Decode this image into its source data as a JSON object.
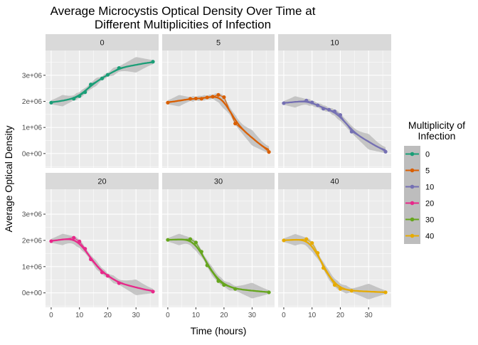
{
  "chart_data": {
    "type": "line",
    "title": "Average Microcystis Optical Density Over Time at\nDifferent Multiplicities of Infection",
    "xlabel": "Time (hours)",
    "ylabel": "Average Optical Density",
    "xlim": [
      -2,
      38
    ],
    "ylim": [
      -550000,
      3950000
    ],
    "x_ticks": [
      0,
      10,
      20,
      30
    ],
    "x_tick_labels": [
      "0",
      "10",
      "20",
      "30"
    ],
    "y_ticks": [
      0,
      1000000,
      2000000,
      3000000
    ],
    "y_tick_labels": [
      "0e+00",
      "1e+06",
      "2e+06",
      "3e+06"
    ],
    "grid": true,
    "smooth_band": true,
    "facet_layout": "2 rows x 3 columns",
    "legend": {
      "title": "Multiplicity of\nInfection",
      "position": "right",
      "entries": [
        "0",
        "5",
        "10",
        "20",
        "30",
        "40"
      ]
    },
    "colors": {
      "panel_bg": "#EBEBEB",
      "strip_bg": "#D9D9D9",
      "grid": "#FFFFFF",
      "band": "#BDBDBD",
      "series": [
        "#1B9E77",
        "#D95F02",
        "#7570B3",
        "#E7298A",
        "#66A61E",
        "#E6AB02"
      ]
    },
    "series": [
      {
        "name": "0",
        "x": [
          0,
          8,
          10,
          12,
          14,
          18,
          20,
          24,
          36
        ],
        "y": [
          1950000,
          2100000,
          2200000,
          2350000,
          2650000,
          2880000,
          3020000,
          3280000,
          3520000
        ]
      },
      {
        "name": "5",
        "x": [
          0,
          8,
          10,
          12,
          14,
          16,
          18,
          20,
          24,
          36
        ],
        "y": [
          1950000,
          2100000,
          2110000,
          2100000,
          2150000,
          2180000,
          2250000,
          2160000,
          1150000,
          60000
        ]
      },
      {
        "name": "10",
        "x": [
          0,
          8,
          10,
          12,
          14,
          16,
          18,
          20,
          24,
          36
        ],
        "y": [
          1930000,
          2030000,
          1960000,
          1850000,
          1720000,
          1680000,
          1620000,
          1480000,
          840000,
          70000
        ]
      },
      {
        "name": "20",
        "x": [
          0,
          8,
          10,
          12,
          14,
          18,
          20,
          24,
          36
        ],
        "y": [
          1970000,
          2100000,
          1960000,
          1680000,
          1280000,
          780000,
          650000,
          370000,
          50000
        ]
      },
      {
        "name": "30",
        "x": [
          0,
          8,
          10,
          12,
          14,
          18,
          20,
          24,
          36
        ],
        "y": [
          2020000,
          2050000,
          1920000,
          1570000,
          1050000,
          450000,
          300000,
          150000,
          20000
        ]
      },
      {
        "name": "40",
        "x": [
          0,
          8,
          10,
          12,
          14,
          18,
          20,
          24,
          36
        ],
        "y": [
          2000000,
          2050000,
          1900000,
          1520000,
          950000,
          300000,
          150000,
          80000,
          20000
        ]
      }
    ]
  }
}
